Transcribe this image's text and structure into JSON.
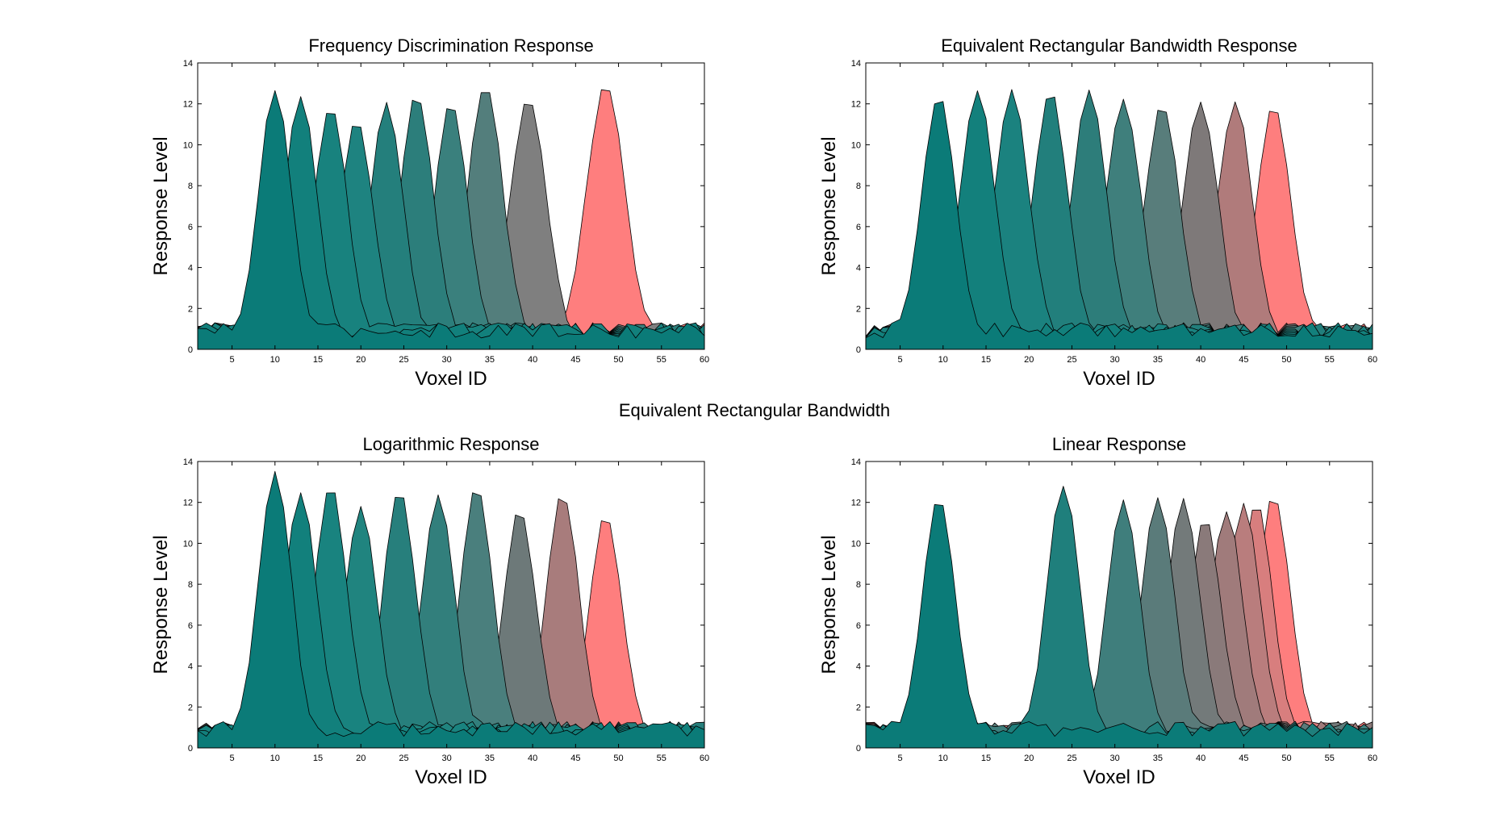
{
  "figure_title": "Equivalent Rectangular Bandwidth",
  "chart_data": [
    {
      "type": "area",
      "title": "Frequency Discrimination Response",
      "xlabel": "Voxel ID",
      "ylabel": "Response Level",
      "xlim": [
        1,
        60
      ],
      "ylim": [
        0,
        14
      ],
      "xticks": [
        5,
        10,
        15,
        20,
        25,
        30,
        35,
        40,
        45,
        50,
        55,
        60
      ],
      "yticks": [
        0,
        2,
        4,
        6,
        8,
        10,
        12,
        14
      ],
      "grid": false,
      "series": [
        {
          "center": 10,
          "peak": 12.3,
          "width": 1.9,
          "color": "#0b7b78"
        },
        {
          "center": 13,
          "peak": 12.0,
          "width": 1.9,
          "color": "#12807c"
        },
        {
          "center": 16.5,
          "peak": 11.6,
          "width": 1.9,
          "color": "#18827e"
        },
        {
          "center": 19.5,
          "peak": 11.0,
          "width": 1.9,
          "color": "#1e8380"
        },
        {
          "center": 23,
          "peak": 11.7,
          "width": 1.9,
          "color": "#247f7c"
        },
        {
          "center": 26.5,
          "peak": 12.1,
          "width": 1.9,
          "color": "#2c7e7b"
        },
        {
          "center": 30.5,
          "peak": 11.7,
          "width": 1.9,
          "color": "#3a807d"
        },
        {
          "center": 34.5,
          "peak": 12.7,
          "width": 2.0,
          "color": "#537e7c"
        },
        {
          "center": 39.5,
          "peak": 11.9,
          "width": 2.1,
          "color": "#7f7f7f"
        },
        {
          "center": 48.5,
          "peak": 12.6,
          "width": 2.2,
          "color": "#fe7e7e"
        }
      ]
    },
    {
      "type": "area",
      "title": "Equivalent Rectangular Bandwidth Response",
      "xlabel": "Voxel ID",
      "ylabel": "Response Level",
      "xlim": [
        1,
        60
      ],
      "ylim": [
        0,
        14
      ],
      "xticks": [
        5,
        10,
        15,
        20,
        25,
        30,
        35,
        40,
        45,
        50,
        55,
        60
      ],
      "yticks": [
        0,
        2,
        4,
        6,
        8,
        10,
        12,
        14
      ],
      "grid": false,
      "series": [
        {
          "center": 9.5,
          "peak": 12.0,
          "width": 2.0,
          "color": "#0b7b78"
        },
        {
          "center": 14,
          "peak": 12.3,
          "width": 2.0,
          "color": "#13807c"
        },
        {
          "center": 18,
          "peak": 12.2,
          "width": 2.0,
          "color": "#1b827f"
        },
        {
          "center": 22.5,
          "peak": 12.2,
          "width": 2.0,
          "color": "#227f7c"
        },
        {
          "center": 27,
          "peak": 12.3,
          "width": 2.0,
          "color": "#2d7d7a"
        },
        {
          "center": 31,
          "peak": 11.9,
          "width": 2.0,
          "color": "#3f7f7c"
        },
        {
          "center": 35.5,
          "peak": 11.6,
          "width": 2.0,
          "color": "#587d7b"
        },
        {
          "center": 40,
          "peak": 11.7,
          "width": 2.0,
          "color": "#7e7979"
        },
        {
          "center": 44,
          "peak": 11.7,
          "width": 2.0,
          "color": "#b07b7b"
        },
        {
          "center": 48.5,
          "peak": 11.6,
          "width": 2.0,
          "color": "#fe7e7e"
        }
      ]
    },
    {
      "type": "area",
      "title": "Logarithmic Response",
      "xlabel": "Voxel ID",
      "ylabel": "Response Level",
      "xlim": [
        1,
        60
      ],
      "ylim": [
        0,
        14
      ],
      "xticks": [
        5,
        10,
        15,
        20,
        25,
        30,
        35,
        40,
        45,
        50,
        55,
        60
      ],
      "yticks": [
        0,
        2,
        4,
        6,
        8,
        10,
        12,
        14
      ],
      "grid": false,
      "series": [
        {
          "center": 10,
          "peak": 13.2,
          "width": 1.9,
          "color": "#0b7b78"
        },
        {
          "center": 13,
          "peak": 12.2,
          "width": 1.9,
          "color": "#12807c"
        },
        {
          "center": 16.5,
          "peak": 12.5,
          "width": 1.9,
          "color": "#19837f"
        },
        {
          "center": 20,
          "peak": 11.4,
          "width": 1.9,
          "color": "#20847f"
        },
        {
          "center": 24.5,
          "peak": 12.3,
          "width": 1.9,
          "color": "#277f7c"
        },
        {
          "center": 29,
          "peak": 12.0,
          "width": 1.9,
          "color": "#327f7c"
        },
        {
          "center": 33.5,
          "peak": 12.4,
          "width": 1.9,
          "color": "#4a7f7d"
        },
        {
          "center": 38.5,
          "peak": 11.3,
          "width": 1.9,
          "color": "#6d7979"
        },
        {
          "center": 43.5,
          "peak": 12.1,
          "width": 1.9,
          "color": "#a87c7c"
        },
        {
          "center": 48.5,
          "peak": 11.1,
          "width": 1.9,
          "color": "#fe7e7e"
        }
      ]
    },
    {
      "type": "area",
      "title": "Linear Response",
      "xlabel": "Voxel ID",
      "ylabel": "Response Level",
      "xlim": [
        1,
        60
      ],
      "ylim": [
        0,
        14
      ],
      "xticks": [
        5,
        10,
        15,
        20,
        25,
        30,
        35,
        40,
        45,
        50,
        55,
        60
      ],
      "yticks": [
        0,
        2,
        4,
        6,
        8,
        10,
        12,
        14
      ],
      "grid": false,
      "series": [
        {
          "center": 9.5,
          "peak": 11.8,
          "width": 1.9,
          "color": "#0b7b78"
        },
        {
          "center": 24,
          "peak": 12.5,
          "width": 1.9,
          "color": "#1f7f7c"
        },
        {
          "center": 31,
          "peak": 11.8,
          "width": 1.9,
          "color": "#3f7e7c"
        },
        {
          "center": 35,
          "peak": 11.9,
          "width": 1.9,
          "color": "#5a7b7a"
        },
        {
          "center": 38,
          "peak": 11.8,
          "width": 1.9,
          "color": "#737a7a"
        },
        {
          "center": 40.5,
          "peak": 10.8,
          "width": 1.9,
          "color": "#8a7a7a"
        },
        {
          "center": 43,
          "peak": 11.3,
          "width": 1.9,
          "color": "#a07b7b"
        },
        {
          "center": 45,
          "peak": 11.6,
          "width": 1.9,
          "color": "#b97d7d"
        },
        {
          "center": 46.5,
          "peak": 11.7,
          "width": 1.9,
          "color": "#d87e7e"
        },
        {
          "center": 48.5,
          "peak": 12.1,
          "width": 1.9,
          "color": "#fe7e7e"
        }
      ]
    }
  ]
}
